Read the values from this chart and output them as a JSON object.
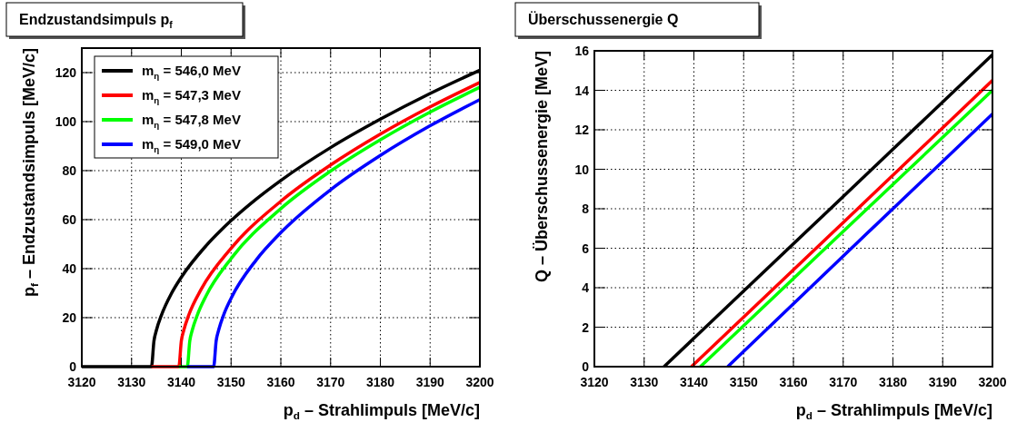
{
  "chart_data": [
    {
      "type": "line",
      "title": "Endzustandsimpuls p$_{f}$",
      "xlabel": "p$_{d}$ – Strahlimpuls [MeV/c]",
      "ylabel": "p$_{f}$ – Endzustandsimpuls [MeV/c]",
      "xlim": [
        3120,
        3200
      ],
      "ylim": [
        0,
        130
      ],
      "xticks": [
        3120,
        3130,
        3140,
        3150,
        3160,
        3170,
        3180,
        3190,
        3200
      ],
      "yticks": [
        0,
        20,
        40,
        60,
        80,
        100,
        120
      ],
      "grid": true,
      "legend": "top left",
      "series": [
        {
          "name": "m$_{η}$ = 546,0 MeV",
          "color": "#000000",
          "x": [
            3120,
            3134,
            3134.5,
            3135,
            3136,
            3138,
            3140,
            3145,
            3150,
            3155,
            3160,
            3170,
            3180,
            3190,
            3200
          ],
          "values": [
            0,
            0,
            10.5,
            14.9,
            21,
            29.8,
            36.5,
            49.4,
            59.6,
            68.3,
            76,
            89.4,
            101,
            111.5,
            121
          ]
        },
        {
          "name": "m$_{η}$ = 547,3 MeV",
          "color": "#ff0000",
          "x": [
            3134,
            3139.5,
            3140,
            3140.5,
            3141.5,
            3144,
            3150,
            3160,
            3170,
            3180,
            3190,
            3200
          ],
          "values": [
            0,
            0,
            10.5,
            14.9,
            21.1,
            31.6,
            48.3,
            67.5,
            82.3,
            94.9,
            106,
            116
          ]
        },
        {
          "name": "m$_{η}$ = 547,8 MeV",
          "color": "#00ff00",
          "x": [
            3139.5,
            3141.2,
            3141.7,
            3142.2,
            3143.2,
            3145,
            3150,
            3160,
            3170,
            3180,
            3190,
            3200
          ],
          "values": [
            0,
            0,
            10.5,
            14.9,
            21,
            29,
            44.1,
            64.5,
            79.8,
            92.6,
            103.9,
            114
          ]
        },
        {
          "name": "m$_{η}$ = 549,0 MeV",
          "color": "#0000ff",
          "x": [
            3141.2,
            3146.5,
            3147,
            3147.5,
            3148.5,
            3150,
            3155,
            3160,
            3170,
            3180,
            3190,
            3200
          ],
          "values": [
            0,
            0,
            10.5,
            14.9,
            21.1,
            27.9,
            43.4,
            54.7,
            72.2,
            86.2,
            98.3,
            109
          ]
        }
      ]
    },
    {
      "type": "line",
      "title": "Überschussenergie Q",
      "xlabel": "p$_{d}$ – Strahlimpuls [MeV/c]",
      "ylabel": "Q – Überschussenergie [MeV]",
      "xlim": [
        3120,
        3200
      ],
      "ylim": [
        0,
        16
      ],
      "xticks": [
        3120,
        3130,
        3140,
        3150,
        3160,
        3170,
        3180,
        3190,
        3200
      ],
      "yticks": [
        0,
        2,
        4,
        6,
        8,
        10,
        12,
        14,
        16
      ],
      "grid": true,
      "series": [
        {
          "color": "#000000",
          "x": [
            3134,
            3167,
            3200
          ],
          "values": [
            0,
            7.9,
            15.8
          ]
        },
        {
          "color": "#ff0000",
          "x": [
            3139.5,
            3170,
            3200
          ],
          "values": [
            0,
            7.3,
            14.5
          ]
        },
        {
          "color": "#00ff00",
          "x": [
            3141.3,
            3170,
            3200
          ],
          "values": [
            0,
            6.85,
            14
          ]
        },
        {
          "color": "#0000ff",
          "x": [
            3146.8,
            3175,
            3200
          ],
          "values": [
            0,
            6.8,
            12.8
          ]
        }
      ]
    }
  ]
}
